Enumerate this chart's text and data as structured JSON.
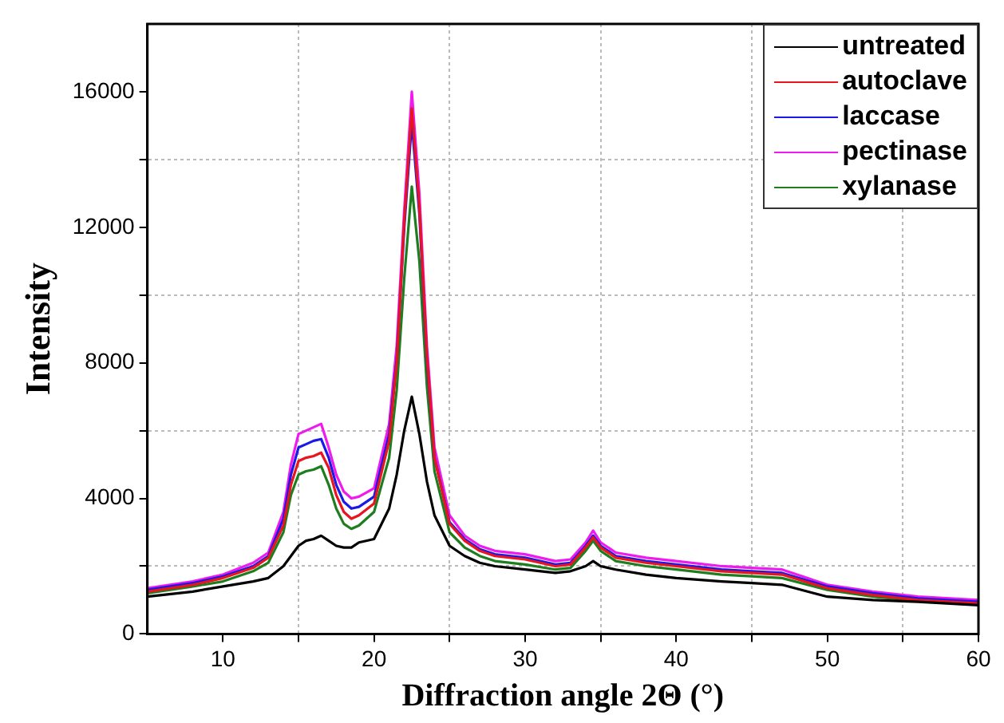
{
  "chart_data": {
    "type": "line",
    "xlabel": "Diffraction angle 2Θ (°)",
    "ylabel": "Intensity",
    "xlim": [
      5,
      60
    ],
    "ylim": [
      0,
      18000
    ],
    "xticks": [
      10,
      {
        "value": 15,
        "label": null
      },
      20,
      {
        "value": 25,
        "label": null
      },
      30,
      {
        "value": 35,
        "label": null
      },
      40,
      {
        "value": 45,
        "label": null
      },
      50,
      {
        "value": 55,
        "label": null
      },
      60
    ],
    "yticks": [
      0,
      {
        "value": 2000,
        "label": null
      },
      4000,
      {
        "value": 6000,
        "label": null
      },
      8000,
      {
        "value": 10000,
        "label": null
      },
      12000,
      {
        "value": 14000,
        "label": null
      },
      16000
    ],
    "grid": true,
    "legend": "top right",
    "marker": "none",
    "line_style": "solid",
    "x": [
      5,
      8,
      10,
      12,
      13,
      14,
      14.5,
      15,
      15.5,
      16,
      16.5,
      17,
      17.5,
      18,
      18.5,
      19,
      20,
      21,
      21.5,
      22,
      22.5,
      23,
      23.5,
      24,
      25,
      26,
      27,
      28,
      30,
      32,
      33,
      34,
      34.5,
      35,
      36,
      38,
      40,
      43,
      45,
      47,
      50,
      53,
      56,
      60
    ],
    "series": [
      {
        "name": "untreated",
        "color": "#000000",
        "values": [
          1100,
          1250,
          1400,
          1550,
          1650,
          2000,
          2300,
          2600,
          2750,
          2800,
          2900,
          2750,
          2600,
          2550,
          2550,
          2700,
          2800,
          3700,
          4700,
          6000,
          7000,
          5900,
          4500,
          3500,
          2600,
          2300,
          2100,
          2000,
          1900,
          1800,
          1850,
          2000,
          2150,
          2000,
          1900,
          1750,
          1650,
          1550,
          1500,
          1450,
          1100,
          1000,
          950,
          850
        ]
      },
      {
        "name": "autoclave",
        "color": "#e8141e",
        "values": [
          1250,
          1450,
          1650,
          1950,
          2250,
          3200,
          4400,
          5100,
          5200,
          5250,
          5350,
          4900,
          4100,
          3600,
          3400,
          3500,
          3850,
          5700,
          8000,
          12200,
          15500,
          12600,
          8200,
          5200,
          3250,
          2750,
          2450,
          2300,
          2200,
          2000,
          2050,
          2550,
          2850,
          2550,
          2250,
          2100,
          2000,
          1850,
          1800,
          1750,
          1350,
          1150,
          1000,
          900
        ]
      },
      {
        "name": "laccase",
        "color": "#1a1ae6",
        "values": [
          1300,
          1500,
          1700,
          2000,
          2300,
          3400,
          4700,
          5500,
          5600,
          5700,
          5750,
          5200,
          4400,
          3900,
          3700,
          3750,
          4050,
          5900,
          8100,
          12000,
          15100,
          12400,
          8100,
          5200,
          3300,
          2800,
          2500,
          2350,
          2250,
          2050,
          2100,
          2600,
          2900,
          2600,
          2300,
          2150,
          2050,
          1900,
          1850,
          1800,
          1400,
          1200,
          1050,
          950
        ]
      },
      {
        "name": "pectinase",
        "color": "#ee1aee",
        "values": [
          1350,
          1550,
          1750,
          2100,
          2400,
          3600,
          5000,
          5900,
          6000,
          6100,
          6200,
          5500,
          4700,
          4200,
          4000,
          4050,
          4300,
          6200,
          8500,
          12500,
          16000,
          13000,
          8500,
          5500,
          3500,
          2900,
          2600,
          2450,
          2350,
          2150,
          2200,
          2700,
          3050,
          2700,
          2400,
          2250,
          2150,
          2000,
          1950,
          1900,
          1450,
          1250,
          1100,
          1000
        ]
      },
      {
        "name": "xylanase",
        "color": "#1e7d1e",
        "values": [
          1200,
          1400,
          1550,
          1850,
          2100,
          3000,
          4100,
          4700,
          4800,
          4850,
          4950,
          4400,
          3700,
          3250,
          3100,
          3200,
          3600,
          5200,
          7200,
          10500,
          13200,
          11000,
          7300,
          4800,
          3000,
          2550,
          2300,
          2150,
          2050,
          1900,
          1950,
          2450,
          2750,
          2450,
          2150,
          2000,
          1900,
          1750,
          1700,
          1650,
          1300,
          1100,
          980,
          880
        ]
      }
    ]
  }
}
